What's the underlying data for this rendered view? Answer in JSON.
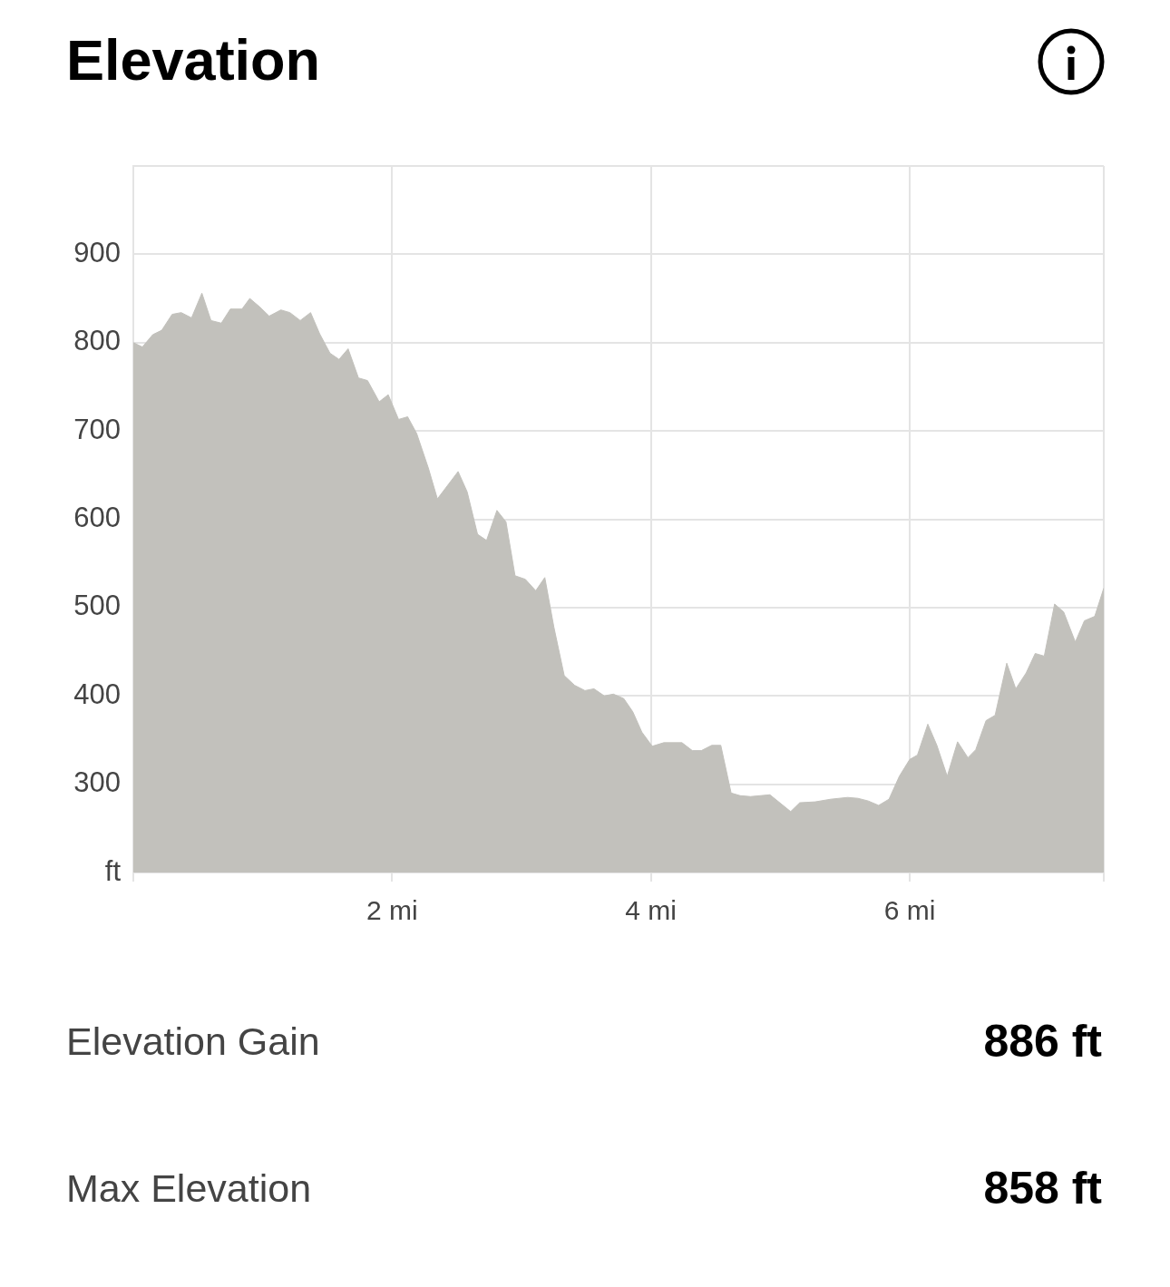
{
  "chart_data": {
    "type": "area",
    "title": "Elevation",
    "x": [
      0,
      0.07,
      0.15,
      0.22,
      0.3,
      0.37,
      0.45,
      0.53,
      0.6,
      0.68,
      0.75,
      0.84,
      0.9,
      0.98,
      1.05,
      1.14,
      1.21,
      1.29,
      1.37,
      1.44,
      1.52,
      1.59,
      1.66,
      1.74,
      1.81,
      1.9,
      1.97,
      2.05,
      2.12,
      2.19,
      2.28,
      2.35,
      2.51,
      2.58,
      2.66,
      2.73,
      2.81,
      2.88,
      2.95,
      3.03,
      3.11,
      3.18,
      3.25,
      3.33,
      3.41,
      3.49,
      3.56,
      3.64,
      3.71,
      3.79,
      3.86,
      3.93,
      4.01,
      4.1,
      4.24,
      4.32,
      4.39,
      4.47,
      4.54,
      4.62,
      4.69,
      4.77,
      4.92,
      5.08,
      5.15,
      5.27,
      5.39,
      5.52,
      5.6,
      5.68,
      5.76,
      5.84,
      5.92,
      6,
      6.06,
      6.14,
      6.21,
      6.29,
      6.37,
      6.45,
      6.51,
      6.59,
      6.66,
      6.75,
      6.82,
      6.9,
      6.97,
      7.04,
      7.12,
      7.19,
      7.28,
      7.35,
      7.43,
      7.5
    ],
    "values": [
      800,
      795,
      809,
      814,
      832,
      834,
      828,
      856,
      825,
      822,
      838,
      838,
      850,
      840,
      830,
      837,
      834,
      825,
      834,
      810,
      788,
      781,
      793,
      760,
      757,
      733,
      741,
      713,
      716,
      697,
      658,
      623,
      654,
      631,
      583,
      576,
      610,
      597,
      536,
      532,
      519,
      534,
      478,
      423,
      412,
      406,
      408,
      400,
      402,
      397,
      382,
      359,
      343,
      347,
      347,
      338,
      338,
      344,
      344,
      290,
      287,
      286,
      288,
      269,
      279,
      280,
      283,
      285,
      284,
      281,
      276,
      283,
      309,
      328,
      333,
      368,
      344,
      309,
      348,
      330,
      339,
      372,
      378,
      437,
      408,
      426,
      448,
      445,
      504,
      495,
      461,
      485,
      490,
      522
    ],
    "color": "#c2c1bc",
    "xlim": [
      0,
      7.5
    ],
    "xticks": [
      {
        "value": 0,
        "label": null
      },
      {
        "value": 2,
        "label": "2 mi"
      },
      {
        "value": 4,
        "label": "4 mi"
      },
      {
        "value": 6,
        "label": "6 mi"
      },
      {
        "value": 7.5,
        "label": null
      }
    ],
    "ylim": [
      200,
      1000
    ],
    "yticks": [
      {
        "value": 200,
        "label": "ft"
      },
      300,
      400,
      500,
      600,
      700,
      800,
      900,
      {
        "value": 1000,
        "label": null
      }
    ],
    "grid": true,
    "annotations": [
      "Elevation Gain",
      "886 ft",
      "Max Elevation",
      "858 ft"
    ]
  }
}
